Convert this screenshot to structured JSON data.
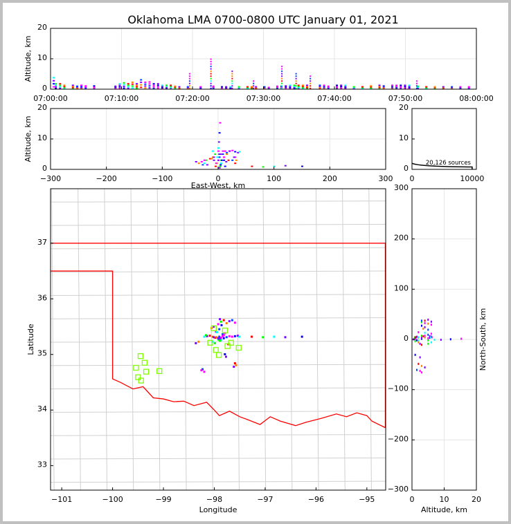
{
  "chart_data": {
    "type": "scatter",
    "title": "Oklahoma LMA 0700-0800 UTC January 01, 2021",
    "source_count_label": "20,126 sources",
    "origin": {
      "lon": -97.93,
      "lat": 35.28
    },
    "panels": {
      "time_height": {
        "xlabel": "",
        "ylabel": "Altitude, km",
        "xlim_min": [
          0,
          60
        ],
        "ylim": [
          0,
          20
        ],
        "xticks": [
          "07:00:00",
          "07:10:00",
          "07:20:00",
          "07:30:00",
          "07:40:00",
          "07:50:00",
          "08:00:00"
        ],
        "yticks": [
          0,
          10,
          20
        ]
      },
      "ew_height": {
        "xlabel": "East-West, km",
        "ylabel": "Altitude, km",
        "xlim": [
          -300,
          300
        ],
        "ylim": [
          0,
          20
        ],
        "xticks": [
          -300,
          -200,
          -100,
          0,
          100,
          200,
          300
        ],
        "yticks": [
          0,
          10,
          20
        ]
      },
      "histogram": {
        "xlim": [
          0,
          10700
        ],
        "ylim": [
          0,
          20
        ],
        "xticks": [
          0,
          10000
        ],
        "yticks": [
          0,
          10,
          20
        ]
      },
      "plan": {
        "xlabel": "Longitude",
        "ylabel": "Latitude",
        "xlim": [
          -101.22,
          -94.63
        ],
        "ylim": [
          32.56,
          37.98
        ],
        "xticks": [
          -101,
          -100,
          -99,
          -98,
          -97,
          -96,
          -95
        ],
        "yticks": [
          33,
          34,
          35,
          36,
          37
        ]
      },
      "ns_height": {
        "xlabel": "Altitude, km",
        "ylabel": "North-South, km",
        "xlim": [
          0,
          20
        ],
        "ylim": [
          -300,
          300
        ],
        "xticks": [
          0,
          10,
          20
        ],
        "yticks": [
          -300,
          -200,
          -100,
          0,
          100,
          200,
          300
        ]
      }
    },
    "time_height_columns": [
      [
        0.5,
        4
      ],
      [
        1,
        2
      ],
      [
        2,
        2
      ],
      [
        3,
        1.5
      ],
      [
        5,
        1.5
      ],
      [
        6,
        1.2
      ],
      [
        7,
        1.5
      ],
      [
        8,
        1.3
      ],
      [
        10,
        1.3
      ],
      [
        15,
        1.2
      ],
      [
        16,
        2
      ],
      [
        17,
        2.3
      ],
      [
        18,
        2
      ],
      [
        19,
        2.5
      ],
      [
        20,
        2
      ],
      [
        21,
        3.3
      ],
      [
        22,
        2.5
      ],
      [
        23,
        2.6
      ],
      [
        24,
        2
      ],
      [
        25,
        2
      ],
      [
        26,
        1.5
      ],
      [
        27,
        1.5
      ],
      [
        28,
        1.5
      ],
      [
        29,
        1.2
      ],
      [
        30,
        1
      ],
      [
        32,
        1
      ],
      [
        35,
        1
      ],
      [
        38,
        1.2
      ],
      [
        40,
        1
      ],
      [
        41,
        1
      ],
      [
        42,
        1
      ],
      [
        44,
        1
      ],
      [
        46,
        1
      ],
      [
        47,
        1
      ],
      [
        48,
        1
      ],
      [
        50,
        1
      ],
      [
        51,
        0.8
      ],
      [
        53,
        1.2
      ],
      [
        54,
        1.2
      ],
      [
        55,
        1.3
      ],
      [
        56,
        1.5
      ],
      [
        57,
        1.5
      ],
      [
        58,
        1.5
      ],
      [
        59,
        1.5
      ],
      [
        60,
        1.5
      ],
      [
        63,
        1.5
      ],
      [
        64,
        1.5
      ],
      [
        65,
        1.2
      ],
      [
        67,
        1.5
      ],
      [
        68,
        1.5
      ],
      [
        69,
        1.5
      ],
      [
        71,
        1
      ],
      [
        73,
        1
      ],
      [
        75,
        1.3
      ],
      [
        77,
        1.5
      ],
      [
        78,
        1.3
      ],
      [
        80,
        1.5
      ],
      [
        81,
        1.5
      ],
      [
        82,
        1.5
      ],
      [
        83,
        1.5
      ],
      [
        84,
        1.5
      ],
      [
        86,
        1.2
      ],
      [
        88,
        1
      ],
      [
        90,
        1
      ],
      [
        92,
        1
      ],
      [
        94,
        1
      ],
      [
        96,
        1
      ],
      [
        98,
        1
      ],
      [
        100,
        1
      ]
    ],
    "time_spikes": [
      [
        22.5,
        10.5
      ],
      [
        25.5,
        6.3
      ],
      [
        32.5,
        7.8
      ],
      [
        34.5,
        6
      ],
      [
        36.5,
        4.5
      ],
      [
        19.5,
        5.5
      ],
      [
        28.5,
        3.5
      ],
      [
        51.5,
        3.3
      ]
    ],
    "sources": [
      [
        22,
        3,
        2,
        15.3
      ],
      [
        22,
        2,
        1,
        12
      ],
      [
        22,
        1,
        0,
        9
      ],
      [
        22,
        0,
        0,
        7
      ],
      [
        22,
        1,
        -1,
        5
      ],
      [
        20,
        -5,
        3,
        1
      ],
      [
        20,
        -3,
        4,
        2
      ],
      [
        20,
        0,
        2,
        3
      ],
      [
        21,
        2,
        5,
        4
      ],
      [
        21,
        5,
        3,
        5
      ],
      [
        21,
        8,
        6,
        6
      ],
      [
        21,
        10,
        2,
        3
      ],
      [
        23,
        -20,
        6,
        1.5
      ],
      [
        23,
        -25,
        5,
        2
      ],
      [
        23,
        -22,
        8,
        3
      ],
      [
        23,
        -15,
        7,
        3.5
      ],
      [
        24,
        -10,
        5,
        4
      ],
      [
        24,
        -8,
        4,
        3
      ],
      [
        25,
        15,
        4,
        5.5
      ],
      [
        25,
        20,
        6,
        6
      ],
      [
        25,
        25,
        5,
        6.2
      ],
      [
        26,
        30,
        6,
        5.8
      ],
      [
        26,
        35,
        7,
        5.5
      ],
      [
        27,
        38,
        5,
        5.8
      ],
      [
        27,
        5,
        35,
        3
      ],
      [
        27,
        10,
        38,
        4
      ],
      [
        28,
        15,
        32,
        5
      ],
      [
        28,
        20,
        36,
        6
      ],
      [
        29,
        25,
        38,
        3
      ],
      [
        29,
        30,
        33,
        4
      ],
      [
        30,
        3,
        0,
        1
      ],
      [
        30,
        4,
        -1,
        1.5
      ],
      [
        30,
        2,
        1,
        0.5
      ],
      [
        31,
        5,
        -2,
        2
      ],
      [
        31,
        3,
        -3,
        1
      ],
      [
        33,
        30,
        -48,
        2
      ],
      [
        33,
        32,
        -52,
        3
      ],
      [
        34,
        28,
        -55,
        4
      ],
      [
        34,
        -28,
        -60,
        1.5
      ],
      [
        35,
        -30,
        -62,
        2.5
      ],
      [
        35,
        -25,
        -65,
        3
      ],
      [
        36,
        12,
        -30,
        1
      ],
      [
        36,
        14,
        -35,
        2.5
      ],
      [
        37,
        -10,
        -5,
        6
      ],
      [
        37,
        -6,
        -8,
        5
      ],
      [
        38,
        18,
        -10,
        3
      ],
      [
        40,
        -35,
        -5,
        2
      ],
      [
        40,
        -40,
        -8,
        2.5
      ],
      [
        42,
        8,
        10,
        5
      ],
      [
        42,
        12,
        12,
        6
      ],
      [
        44,
        10,
        8,
        4
      ],
      [
        45,
        150,
        5,
        1
      ],
      [
        46,
        120,
        4,
        1.2
      ],
      [
        47,
        100,
        5,
        1
      ],
      [
        48,
        80,
        4,
        0.8
      ],
      [
        50,
        60,
        5,
        1
      ],
      [
        52,
        -12,
        22,
        3.5
      ],
      [
        53,
        -8,
        25,
        4
      ],
      [
        54,
        2,
        20,
        5
      ],
      [
        55,
        -4,
        15,
        2
      ],
      [
        56,
        0,
        30,
        6
      ],
      [
        57,
        6,
        28,
        3
      ],
      [
        58,
        3,
        40,
        5
      ],
      [
        59,
        -2,
        14,
        4
      ]
    ],
    "stations": [
      [
        -98.01,
        35.47
      ],
      [
        -97.79,
        35.43
      ],
      [
        -98.08,
        35.21
      ],
      [
        -97.67,
        35.21
      ],
      [
        -97.97,
        35.08
      ],
      [
        -97.74,
        35.15
      ],
      [
        -97.52,
        35.12
      ],
      [
        -97.91,
        34.99
      ],
      [
        -99.45,
        34.97
      ],
      [
        -99.37,
        34.85
      ],
      [
        -99.54,
        34.76
      ],
      [
        -99.34,
        34.69
      ],
      [
        -99.5,
        34.59
      ],
      [
        -99.44,
        34.53
      ],
      [
        -99.08,
        34.7
      ]
    ],
    "state_border": [
      [
        -101.22,
        36.5
      ],
      [
        -100,
        36.5
      ],
      [
        -100,
        34.56
      ],
      [
        -99.85,
        34.5
      ],
      [
        -99.6,
        34.38
      ],
      [
        -99.4,
        34.42
      ],
      [
        -99.2,
        34.22
      ],
      [
        -99,
        34.2
      ],
      [
        -98.8,
        34.15
      ],
      [
        -98.6,
        34.16
      ],
      [
        -98.4,
        34.08
      ],
      [
        -98.15,
        34.14
      ],
      [
        -98,
        34.0
      ],
      [
        -97.9,
        33.9
      ],
      [
        -97.7,
        33.98
      ],
      [
        -97.5,
        33.88
      ],
      [
        -97.35,
        33.83
      ],
      [
        -97.1,
        33.74
      ],
      [
        -96.9,
        33.88
      ],
      [
        -96.7,
        33.8
      ],
      [
        -96.4,
        33.72
      ],
      [
        -96.2,
        33.78
      ],
      [
        -95.9,
        33.85
      ],
      [
        -95.6,
        33.93
      ],
      [
        -95.4,
        33.88
      ],
      [
        -95.2,
        33.95
      ],
      [
        -95,
        33.9
      ],
      [
        -94.9,
        33.8
      ],
      [
        -94.63,
        33.68
      ]
    ],
    "north_border": [
      [
        -101.22,
        37
      ],
      [
        -94.63,
        37
      ]
    ]
  }
}
